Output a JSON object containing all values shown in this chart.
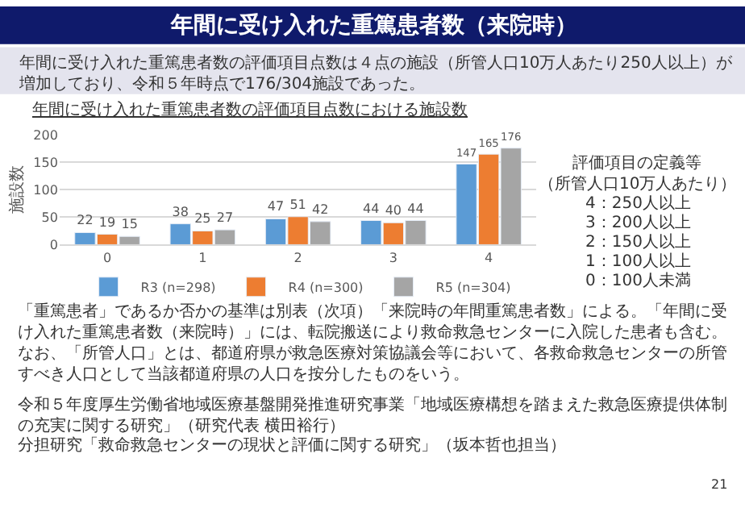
{
  "chart_data": {
    "type": "bar",
    "title": "年間に受け入れた重篤患者数（来院時）",
    "subtitle": "年間に受け入れた重篤患者数の評価項目点数における施設数",
    "ylabel": "施設数",
    "categories": [
      "0",
      "1",
      "2",
      "3",
      "4"
    ],
    "series": [
      {
        "name": "R3 (n=298)",
        "color": "#5b9bd5",
        "values": [
          22,
          38,
          47,
          44,
          147
        ]
      },
      {
        "name": "R4 (n=300)",
        "color": "#ed7d31",
        "values": [
          19,
          25,
          51,
          40,
          165
        ]
      },
      {
        "name": "R5 (n=304)",
        "color": "#a5a5a5",
        "values": [
          15,
          27,
          42,
          44,
          176
        ]
      }
    ],
    "ylim": [
      0,
      200
    ],
    "yticks": [
      0,
      50,
      100,
      150,
      200
    ],
    "grid": "y",
    "legend": "bottom",
    "data_labels": true,
    "annotations": [
      "年間に受け入れた重篤患者数の評価項目点数は４点の施設（所管人口10万人あたり250人以上）が増加しており、令和５年時点で176/304施設であった。",
      "評価項目の定義等",
      "（所管人口10万人あたり）",
      "4：250人以上",
      "3：200人以上",
      "2：150人以上",
      "1：100人以上",
      "0：100人未満",
      "「重篤患者」であるか否かの基準は別表（次項）「来院時の年間重篤患者数」による。「年間に受け入れた重篤患者数（来院時）」には、転院搬送により救命救急センターに入院した患者も含む。なお、「所管人口」とは、都道府県が救急医療対策協議会等において、各救命救急センターの所管すべき人口として当該都道府県の人口を按分したものをいう。",
      "令和５年度厚生労働省地域医療基盤開発推進研究事業「地域医療構想を踏まえた救急医療提供体制の充実に関する研究」（研究代表 横田裕行）",
      "分担研究「救命救急センターの現状と評価に関する研究」（坂本哲也担当）",
      "21"
    ]
  }
}
